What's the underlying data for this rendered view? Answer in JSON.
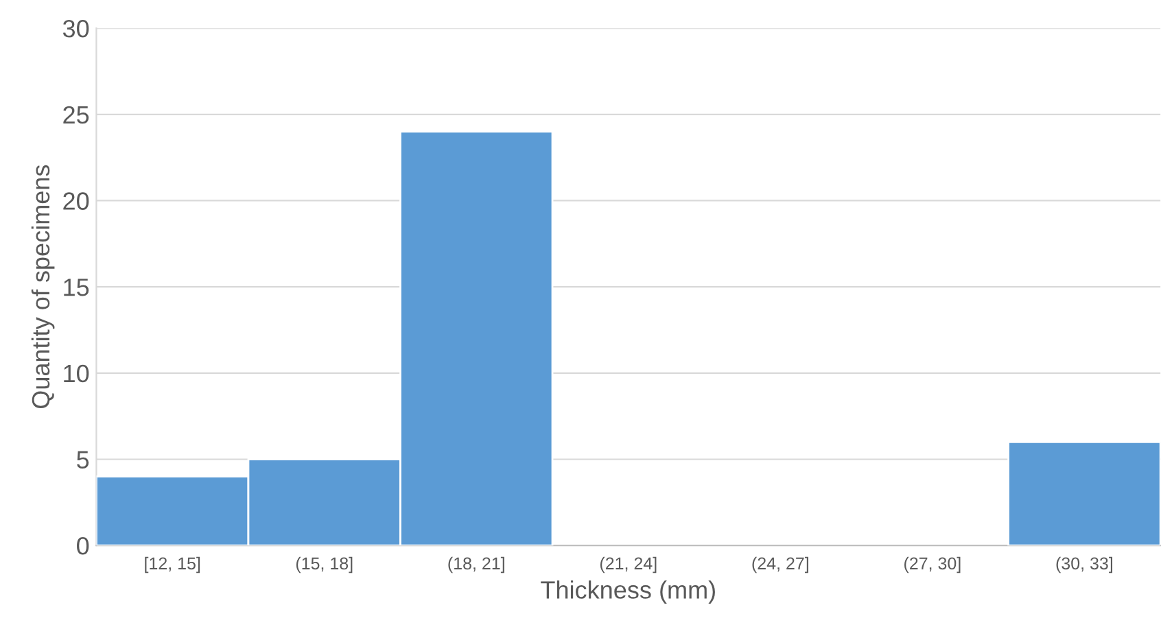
{
  "chart_data": {
    "type": "bar",
    "xlabel": "Thickness (mm)",
    "ylabel": "Quantity of specimens",
    "categories": [
      "[12, 15]",
      "(15, 18]",
      "(18, 21]",
      "(21, 24]",
      "(24, 27]",
      "(27, 30]",
      "(30, 33]"
    ],
    "values": [
      4,
      5,
      24,
      0,
      0,
      0,
      6
    ],
    "color": "#5b9bd5",
    "ylim": [
      0,
      30
    ],
    "yticks": [
      0,
      5,
      10,
      15,
      20,
      25,
      30
    ],
    "grid": "y",
    "legend": false
  }
}
